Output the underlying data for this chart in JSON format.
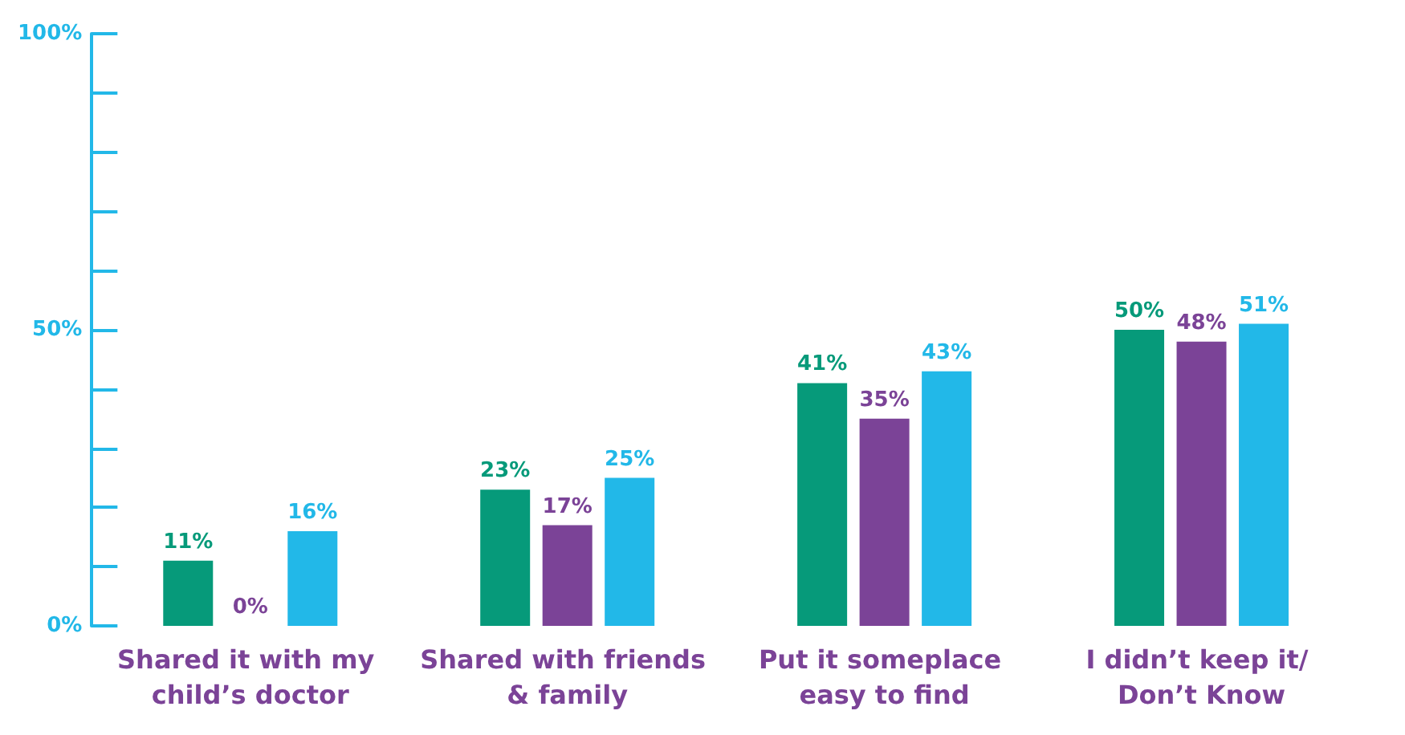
{
  "chart_data": {
    "type": "bar",
    "categories": [
      "Shared it with my child’s doctor",
      "Shared with friends & family",
      "Put it someplace easy to find",
      "I didn’t keep it/ Don’t Know"
    ],
    "series": [
      {
        "color": "#069a7a",
        "values": [
          11,
          23,
          41,
          50
        ],
        "value_labels": [
          "11%",
          "23%",
          "41%",
          "50%"
        ]
      },
      {
        "color": "#7b4397",
        "values": [
          0,
          17,
          35,
          48
        ],
        "value_labels": [
          "0%",
          "17%",
          "35%",
          "48%"
        ]
      },
      {
        "color": "#22b8e8",
        "values": [
          16,
          25,
          43,
          51
        ],
        "value_labels": [
          "16%",
          "25%",
          "43%",
          "51%"
        ]
      }
    ],
    "ylim": [
      0,
      100
    ],
    "yticks": [
      {
        "value": 0,
        "label": "0%"
      },
      {
        "value": 10,
        "label": null
      },
      {
        "value": 20,
        "label": null
      },
      {
        "value": 30,
        "label": null
      },
      {
        "value": 40,
        "label": null
      },
      {
        "value": 50,
        "label": "50%"
      },
      {
        "value": 60,
        "label": null
      },
      {
        "value": 70,
        "label": null
      },
      {
        "value": 80,
        "label": null
      },
      {
        "value": 90,
        "label": null
      },
      {
        "value": 100,
        "label": "100%"
      }
    ],
    "grid": false
  }
}
